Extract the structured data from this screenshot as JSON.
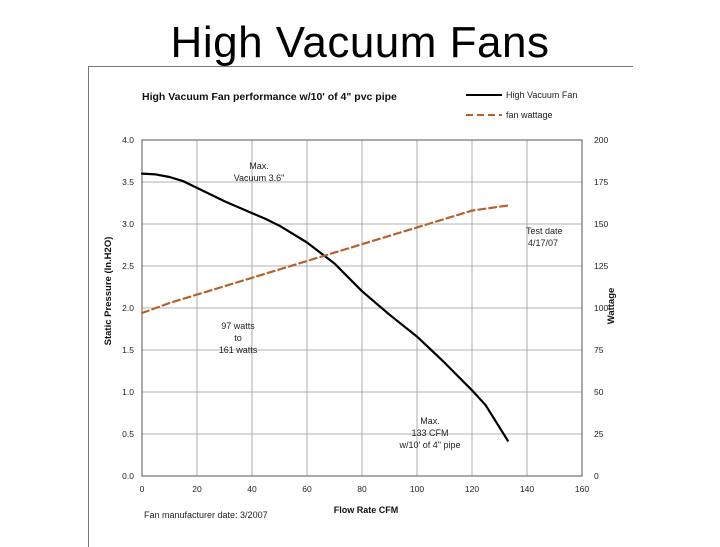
{
  "slide_title": "High Vacuum Fans",
  "chart_data": {
    "type": "line",
    "title": "High Vacuum Fan performance w/10' of 4\" pvc pipe",
    "xlabel": "Flow Rate CFM",
    "ylabel": "Static Pressure (In.H2O)",
    "y2label": "Wattage",
    "xlim": [
      0,
      160
    ],
    "ylim": [
      0,
      4.0
    ],
    "y2lim": [
      0,
      200
    ],
    "x_ticks": [
      "0",
      "20",
      "40",
      "60",
      "80",
      "100",
      "120",
      "140",
      "160"
    ],
    "y_ticks": [
      "0.0",
      "0.5",
      "1.0",
      "1.5",
      "2.0",
      "2.5",
      "3.0",
      "3.5",
      "4.0"
    ],
    "y2_ticks": [
      "0",
      "25",
      "50",
      "75",
      "100",
      "125",
      "150",
      "175",
      "200"
    ],
    "grid": true,
    "legend_position": "top-right",
    "series": [
      {
        "name": "High Vacuum Fan",
        "axis": "left",
        "color": "#000000",
        "style": "solid",
        "x": [
          0,
          5,
          10,
          15,
          20,
          30,
          40,
          45,
          50,
          60,
          70,
          80,
          90,
          100,
          110,
          120,
          125,
          133
        ],
        "y": [
          3.6,
          3.59,
          3.56,
          3.51,
          3.43,
          3.27,
          3.13,
          3.06,
          2.98,
          2.78,
          2.53,
          2.2,
          1.92,
          1.66,
          1.35,
          1.02,
          0.84,
          0.42
        ]
      },
      {
        "name": "fan wattage",
        "axis": "right",
        "color": "#b5622c",
        "style": "dashed",
        "x": [
          0,
          10,
          20,
          30,
          40,
          50,
          60,
          70,
          80,
          90,
          100,
          110,
          120,
          133
        ],
        "y": [
          97,
          103,
          108,
          113,
          118,
          123,
          128,
          133,
          138,
          143,
          148,
          153,
          158,
          161
        ]
      }
    ],
    "annotations": [
      {
        "lines": [
          "Max.",
          "Vacuum 3.6\""
        ]
      },
      {
        "lines": [
          "97 watts",
          "to",
          "161 watts"
        ]
      },
      {
        "lines": [
          "Test date",
          "4/17/07"
        ]
      },
      {
        "lines": [
          "Max.",
          "133 CFM",
          "w/10' of 4\" pipe"
        ]
      }
    ],
    "footnote": "Fan manufacturer date: 3/2007"
  }
}
